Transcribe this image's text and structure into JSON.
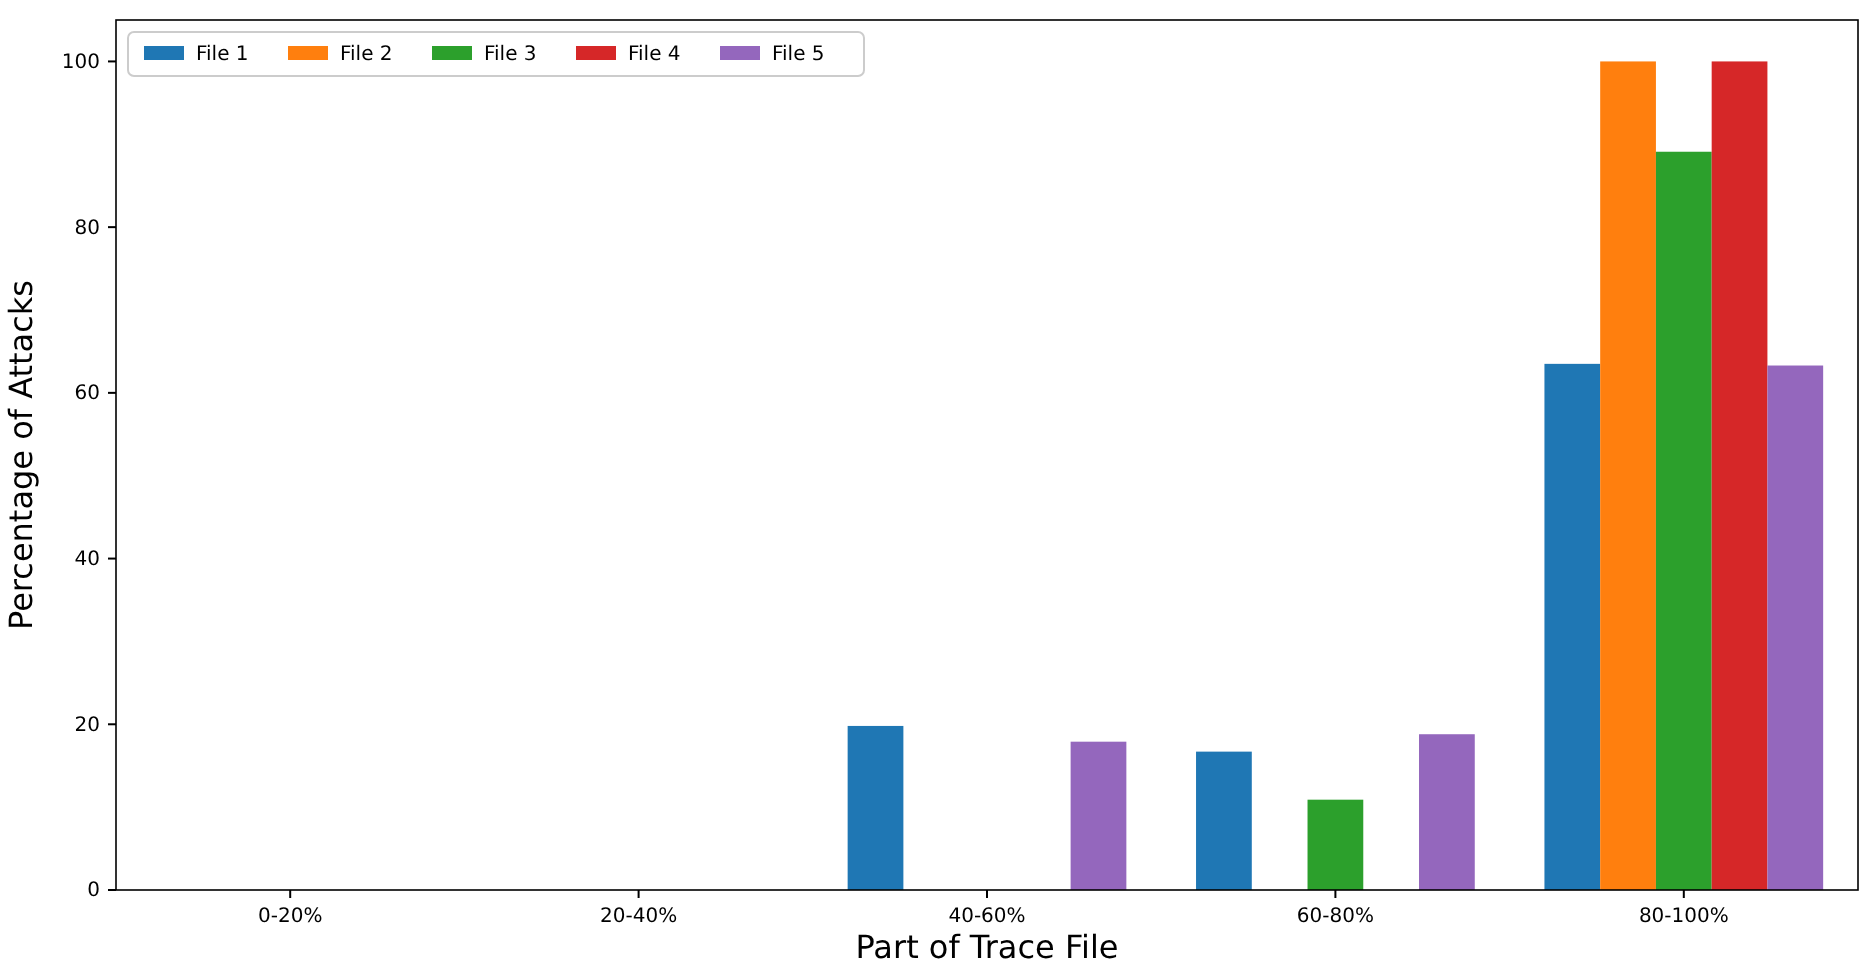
{
  "chart_data": {
    "type": "bar",
    "xlabel": "Part of Trace File",
    "ylabel": "Percentage of Attacks",
    "categories": [
      "0-20%",
      "20-40%",
      "40-60%",
      "60-80%",
      "80-100%"
    ],
    "series": [
      {
        "name": "File 1",
        "color": "#1f77b4",
        "values": [
          0,
          0,
          19.8,
          16.7,
          63.5
        ]
      },
      {
        "name": "File 2",
        "color": "#ff7f0e",
        "values": [
          0,
          0,
          0,
          0,
          100
        ]
      },
      {
        "name": "File 3",
        "color": "#2ca02c",
        "values": [
          0,
          0,
          0,
          10.9,
          89.1
        ]
      },
      {
        "name": "File 4",
        "color": "#d62728",
        "values": [
          0,
          0,
          0,
          0,
          100
        ]
      },
      {
        "name": "File 5",
        "color": "#9467bd",
        "values": [
          0,
          0,
          17.9,
          18.8,
          63.3
        ]
      }
    ],
    "ylim": [
      0,
      105
    ],
    "yticks": [
      0,
      20,
      40,
      60,
      80,
      100
    ],
    "grid": false,
    "legend": "top left"
  }
}
